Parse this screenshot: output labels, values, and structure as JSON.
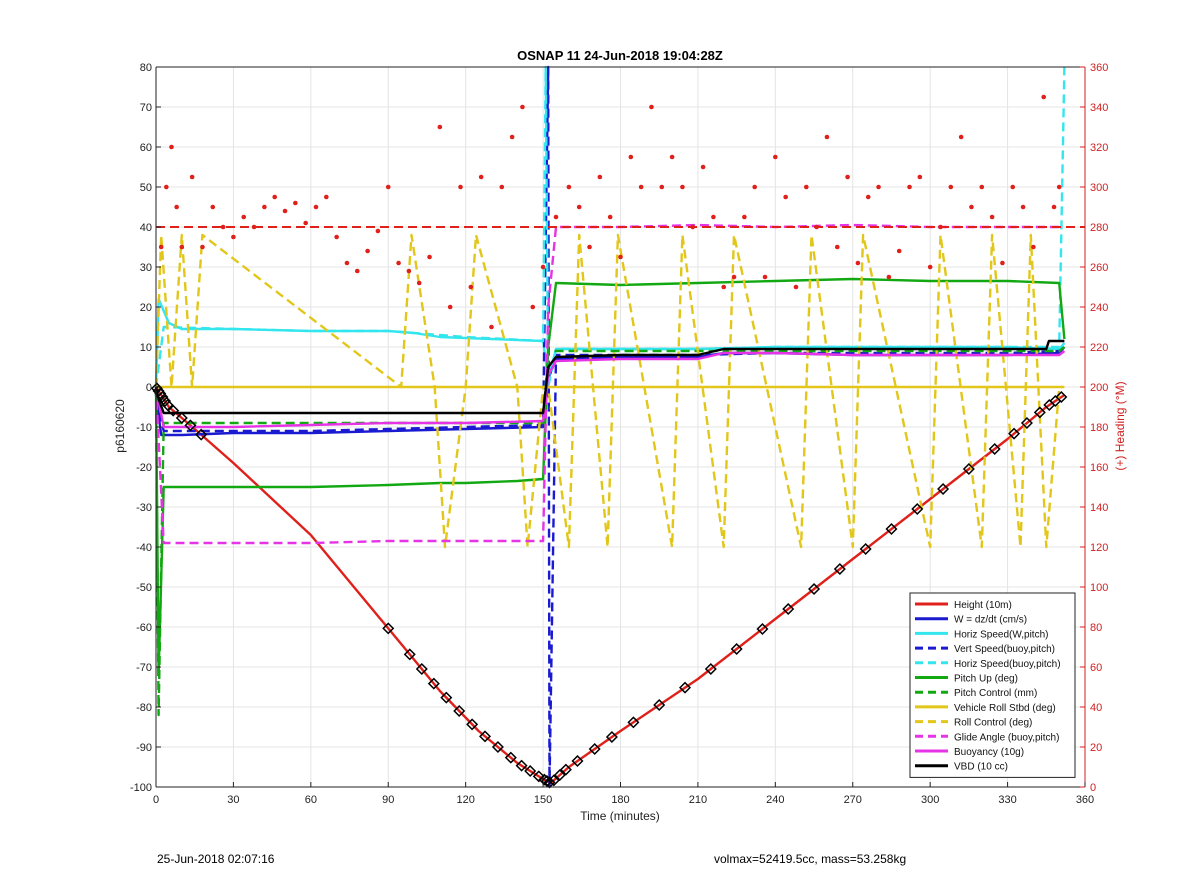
{
  "chart_data": {
    "type": "line",
    "title": "OSNAP 11 24-Jun-2018 19:04:28Z",
    "xlabel": "Time (minutes)",
    "ylabel": "p6160620",
    "y2label": "(+) Heading (°M)",
    "xlim": [
      0,
      360
    ],
    "ylim": [
      -100,
      80
    ],
    "y2lim": [
      0,
      360
    ],
    "xticks": [
      0,
      30,
      60,
      90,
      120,
      150,
      180,
      210,
      240,
      270,
      300,
      330,
      360
    ],
    "yticks": [
      -100,
      -90,
      -80,
      -70,
      -60,
      -50,
      -40,
      -30,
      -20,
      -10,
      0,
      10,
      20,
      30,
      40,
      50,
      60,
      70,
      80
    ],
    "y2ticks": [
      0,
      20,
      40,
      60,
      80,
      100,
      120,
      140,
      160,
      180,
      200,
      220,
      240,
      260,
      280,
      300,
      320,
      340,
      360
    ],
    "grid": true,
    "legend_position": "bottom-right",
    "colors": {
      "red": "#e0201a",
      "blue": "#1a1ad0",
      "cyan": "#33e6ee",
      "green": "#12a812",
      "yellow": "#e2c61a",
      "magenta": "#e633e6",
      "black": "#000000",
      "axis_right": "#d02020"
    },
    "series": [
      {
        "name": "Height (10m)",
        "color": "#e0201a",
        "style": "solid",
        "x": [
          0,
          2,
          5,
          15,
          30,
          60,
          96,
          110,
          125,
          140,
          150,
          153,
          160,
          180,
          210,
          240,
          270,
          300,
          330,
          345,
          352
        ],
        "y": [
          0,
          -2,
          -5,
          -10.5,
          -19,
          -37,
          -65,
          -76,
          -86,
          -94,
          -98,
          -99,
          -95,
          -86,
          -73,
          -58,
          -43,
          -28,
          -13,
          -5,
          -2
        ]
      },
      {
        "name": "W = dz/dt (cm/s)",
        "color": "#1a1ad0",
        "style": "solid",
        "x": [
          0,
          2,
          10,
          30,
          60,
          90,
          120,
          150,
          152,
          155,
          180,
          210,
          220,
          240,
          270,
          300,
          330,
          350,
          352
        ],
        "y": [
          -2,
          -12,
          -12,
          -11.5,
          -11.5,
          -11,
          -10.5,
          -10,
          2,
          7,
          7.5,
          7.5,
          8.5,
          8.5,
          8,
          8,
          8,
          8.5,
          10
        ]
      },
      {
        "name": "Horiz Speed(W,pitch)",
        "color": "#33e6ee",
        "style": "solid",
        "x": [
          0,
          1,
          5,
          10,
          30,
          60,
          90,
          100,
          110,
          130,
          150,
          152,
          155,
          180,
          210,
          240,
          270,
          300,
          330,
          350,
          352
        ],
        "y": [
          0,
          22,
          16,
          14.5,
          14.5,
          14,
          14,
          13.5,
          12.5,
          12,
          11.5,
          2,
          9.5,
          9.5,
          9.5,
          10,
          10,
          10,
          10,
          9.5,
          11
        ]
      },
      {
        "name": "Vert Speed(buoy,pitch)",
        "color": "#1a1ad0",
        "style": "dashed",
        "x": [
          0,
          3,
          30,
          60,
          90,
          120,
          150,
          152,
          152.5,
          155,
          180,
          210,
          240,
          270,
          300,
          330,
          350
        ],
        "y": [
          -3,
          -11,
          -11,
          -11,
          -10.5,
          -10,
          -9.5,
          80,
          -100,
          8,
          8,
          8,
          8.5,
          8.5,
          8.5,
          8.5,
          9
        ]
      },
      {
        "name": "Horiz Speed(buoy,pitch)",
        "color": "#33e6ee",
        "style": "dashed",
        "x": [
          0,
          3,
          30,
          60,
          90,
          120,
          150,
          151,
          152,
          155,
          180,
          210,
          240,
          270,
          300,
          330,
          350,
          352
        ],
        "y": [
          0,
          15,
          14.5,
          14,
          14,
          12.5,
          11.5,
          80,
          0,
          9.5,
          9.5,
          9.5,
          10,
          10,
          10,
          10,
          10,
          80
        ]
      },
      {
        "name": "Pitch Up (deg)",
        "color": "#12a812",
        "style": "solid",
        "x": [
          0,
          1,
          3,
          10,
          30,
          60,
          90,
          110,
          120,
          140,
          150,
          152,
          155,
          180,
          210,
          240,
          270,
          300,
          330,
          350,
          352
        ],
        "y": [
          0,
          -72,
          -25,
          -25,
          -25,
          -25,
          -24.5,
          -24,
          -24,
          -23.5,
          -23,
          10,
          26,
          25.5,
          26,
          26.5,
          27,
          26.5,
          26.5,
          26,
          12
        ]
      },
      {
        "name": "Pitch Control (mm)",
        "color": "#12a812",
        "style": "dashed",
        "x": [
          0,
          1,
          3,
          30,
          60,
          90,
          120,
          150,
          152,
          155,
          180,
          210,
          240,
          270,
          300,
          330,
          350,
          352
        ],
        "y": [
          0,
          -82,
          -9,
          -9,
          -9,
          -9,
          -9,
          -9,
          9,
          9,
          9,
          9,
          9,
          9,
          9,
          9,
          9,
          10
        ]
      },
      {
        "name": "Vehicle Roll Stbd (deg)",
        "color": "#e2c61a",
        "style": "solid",
        "x": [
          0,
          10,
          30,
          60,
          90,
          120,
          150,
          152,
          155,
          180,
          210,
          240,
          270,
          300,
          330,
          350,
          352
        ],
        "y": [
          0,
          0,
          0,
          0,
          0,
          0,
          0,
          0,
          0,
          0,
          0,
          0,
          0,
          0,
          0,
          0,
          0
        ]
      },
      {
        "name": "Roll Control (deg)",
        "color": "#e2c61a",
        "style": "dashed",
        "x": [
          0,
          2,
          6,
          10,
          14,
          18,
          95,
          99,
          108,
          112,
          120,
          124,
          140,
          144,
          150,
          152,
          160,
          164,
          175,
          179,
          200,
          204,
          220,
          224,
          250,
          254,
          270,
          274,
          300,
          304,
          320,
          324,
          335,
          339,
          345,
          350
        ],
        "y": [
          0,
          38,
          0,
          38,
          0,
          38,
          0,
          38,
          0,
          -40,
          0,
          38,
          0,
          -40,
          0,
          0,
          -40,
          38,
          -40,
          38,
          -40,
          38,
          -40,
          38,
          -40,
          38,
          -40,
          38,
          -40,
          38,
          -40,
          38,
          -40,
          38,
          -40,
          0
        ]
      },
      {
        "name": "Glide Angle (buoy,pitch)",
        "color": "#e633e6",
        "style": "dashed",
        "x": [
          0,
          3,
          30,
          60,
          90,
          120,
          150,
          152,
          155,
          180,
          210,
          240,
          270,
          300,
          330,
          350
        ],
        "y": [
          0,
          -39,
          -39,
          -39,
          -38.5,
          -38.5,
          -38.5,
          20,
          40,
          40,
          40.5,
          40,
          40.5,
          40,
          40,
          40
        ]
      },
      {
        "name": "Buoyancy (10g)",
        "color": "#e633e6",
        "style": "solid",
        "x": [
          0,
          3,
          30,
          60,
          90,
          120,
          150,
          152,
          155,
          180,
          210,
          220,
          240,
          270,
          300,
          330,
          350,
          352
        ],
        "y": [
          0,
          -10,
          -10,
          -9.5,
          -9,
          -9,
          -8.5,
          3,
          6.5,
          7,
          7,
          8.5,
          8.5,
          8,
          8,
          8,
          8,
          9
        ]
      },
      {
        "name": "VBD (10 cc)",
        "color": "#000000",
        "style": "solid",
        "x": [
          0,
          1,
          3,
          30,
          60,
          90,
          120,
          150,
          152,
          155,
          180,
          210,
          220,
          240,
          270,
          300,
          330,
          345,
          346,
          352
        ],
        "y": [
          0,
          -3,
          -6.5,
          -6.5,
          -6.5,
          -6.5,
          -6.5,
          -6.5,
          5,
          7.5,
          8,
          8,
          9.5,
          9.5,
          9.5,
          9.5,
          9.5,
          9.5,
          11.5,
          11.5
        ]
      }
    ],
    "heading": {
      "color": "#e0201a",
      "target": 280,
      "x": [
        2,
        4,
        6,
        8,
        10,
        14,
        18,
        22,
        26,
        30,
        34,
        38,
        42,
        46,
        50,
        54,
        58,
        62,
        66,
        70,
        74,
        78,
        82,
        86,
        90,
        94,
        98,
        102,
        106,
        110,
        114,
        118,
        122,
        126,
        130,
        134,
        138,
        142,
        146,
        150,
        155,
        160,
        164,
        168,
        172,
        176,
        180,
        184,
        188,
        192,
        196,
        200,
        204,
        208,
        212,
        216,
        220,
        224,
        228,
        232,
        236,
        240,
        244,
        248,
        252,
        256,
        260,
        264,
        268,
        272,
        276,
        280,
        284,
        288,
        292,
        296,
        300,
        304,
        308,
        312,
        316,
        320,
        324,
        328,
        332,
        336,
        340,
        344,
        348,
        350
      ],
      "y": [
        270,
        300,
        320,
        290,
        270,
        305,
        270,
        290,
        280,
        275,
        285,
        280,
        290,
        295,
        288,
        292,
        282,
        290,
        295,
        275,
        262,
        258,
        268,
        278,
        300,
        262,
        258,
        252,
        265,
        330,
        240,
        300,
        250,
        305,
        230,
        300,
        325,
        340,
        240,
        260,
        285,
        300,
        290,
        270,
        305,
        285,
        265,
        315,
        300,
        340,
        300,
        315,
        300,
        280,
        310,
        285,
        250,
        255,
        285,
        300,
        255,
        315,
        295,
        250,
        300,
        280,
        325,
        270,
        305,
        262,
        295,
        300,
        255,
        268,
        300,
        305,
        260,
        280,
        300,
        325,
        290,
        300,
        285,
        262,
        300,
        290,
        270,
        345,
        290,
        300
      ]
    },
    "footer_left": "25-Jun-2018 02:07:16",
    "footer_right": "volmax=52419.5cc, mass=53.258kg"
  }
}
